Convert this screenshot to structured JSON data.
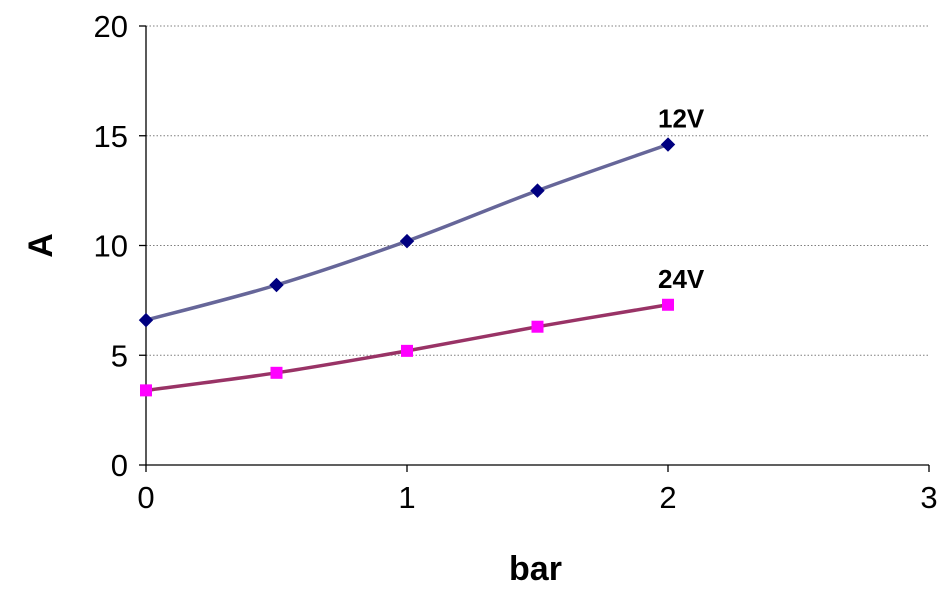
{
  "chart_data": {
    "type": "line",
    "xlabel": "bar",
    "ylabel": "A",
    "xlim": [
      0,
      3
    ],
    "ylim": [
      0,
      20
    ],
    "x_ticks": [
      "0",
      "1",
      "2",
      "3"
    ],
    "y_ticks": [
      "0",
      "5",
      "10",
      "15",
      "20"
    ],
    "grid": "horizontal-dotted",
    "legend": "none",
    "series": [
      {
        "name": "12V",
        "x": [
          0,
          0.5,
          1,
          1.5,
          2
        ],
        "y": [
          6.6,
          8.2,
          10.2,
          12.5,
          14.6
        ],
        "line_color": "#666699",
        "marker": "diamond",
        "marker_color": "#000080"
      },
      {
        "name": "24V",
        "x": [
          0,
          0.5,
          1,
          1.5,
          2
        ],
        "y": [
          3.4,
          4.2,
          5.2,
          6.3,
          7.3
        ],
        "line_color": "#993366",
        "marker": "square",
        "marker_color": "#ff00ff"
      }
    ]
  }
}
